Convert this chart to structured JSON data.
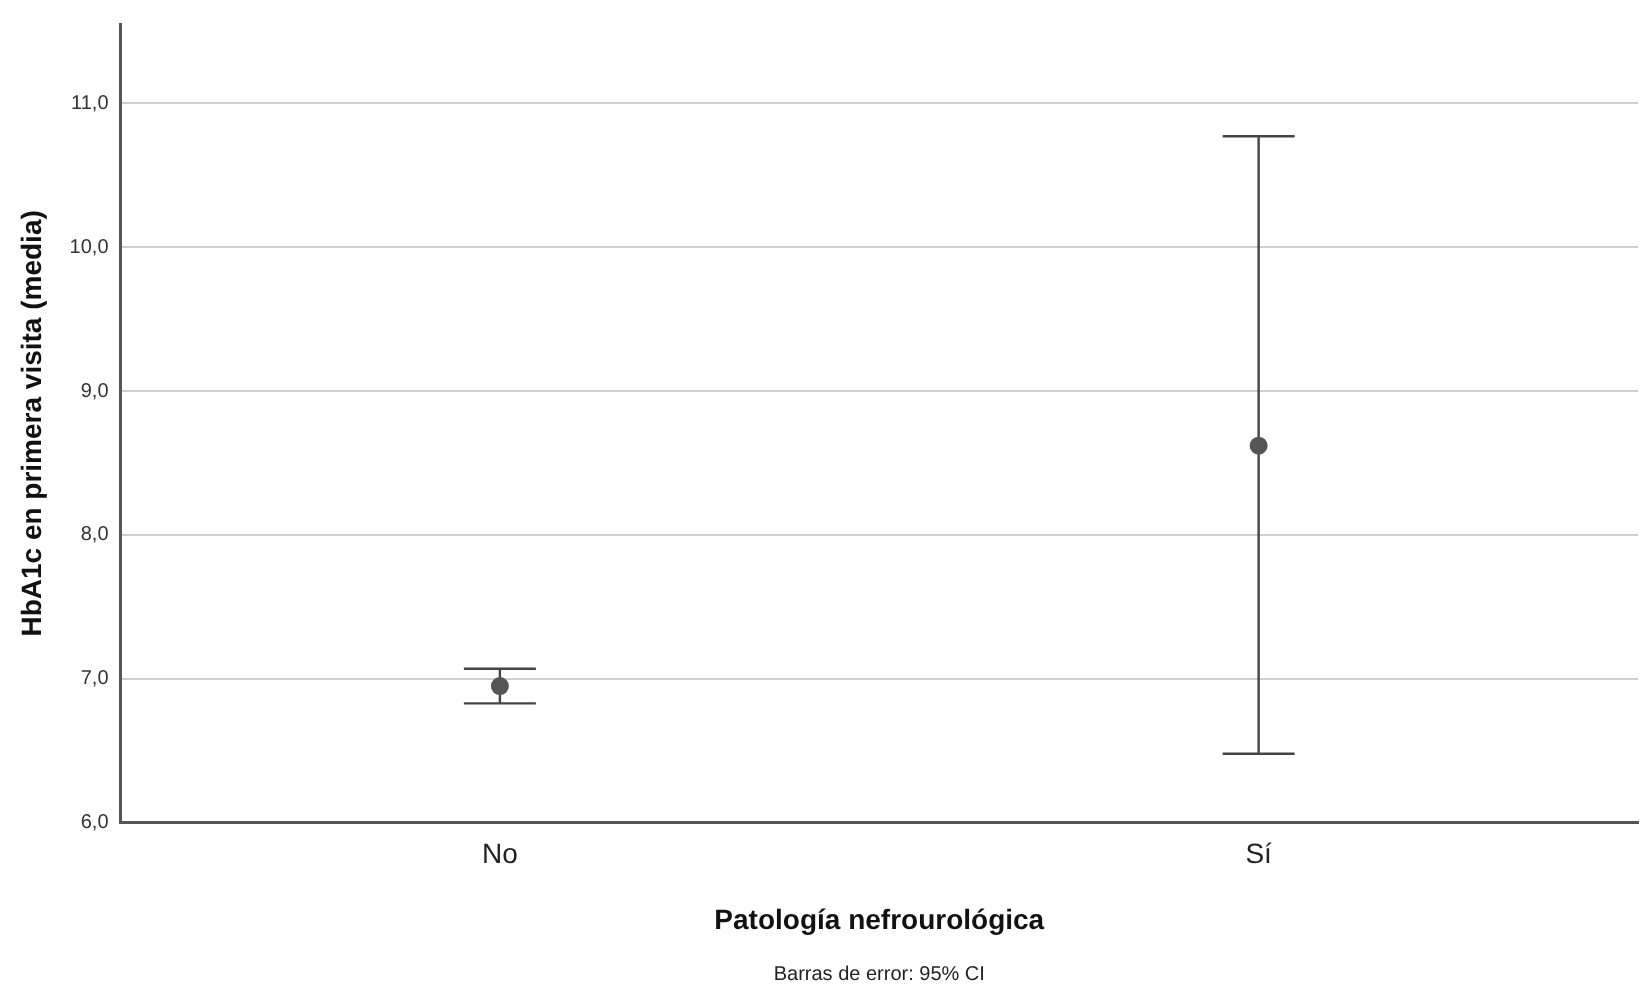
{
  "chart_data": {
    "type": "scatter",
    "xlabel": "Patología nefrourológica",
    "ylabel": "HbA1c en primera visita (media)",
    "categories": [
      "No",
      "Sí"
    ],
    "series": [
      {
        "color": "#555555",
        "values": [
          6.95,
          8.62
        ],
        "errors": [
          [
            6.83,
            7.07
          ],
          [
            6.48,
            10.77
          ]
        ]
      }
    ],
    "ylim": [
      6,
      11.55
    ],
    "yticks": [
      {
        "value": 6,
        "label": "6,0"
      },
      {
        "value": 7,
        "label": "7,0"
      },
      {
        "value": 8,
        "label": "8,0"
      },
      {
        "value": 9,
        "label": "9,0"
      },
      {
        "value": 10,
        "label": "10,0"
      },
      {
        "value": 11,
        "label": "11,0"
      }
    ],
    "grid": "y",
    "marker": "circle",
    "legend": false,
    "annotations": [
      "Barras de error: 95% CI"
    ]
  }
}
